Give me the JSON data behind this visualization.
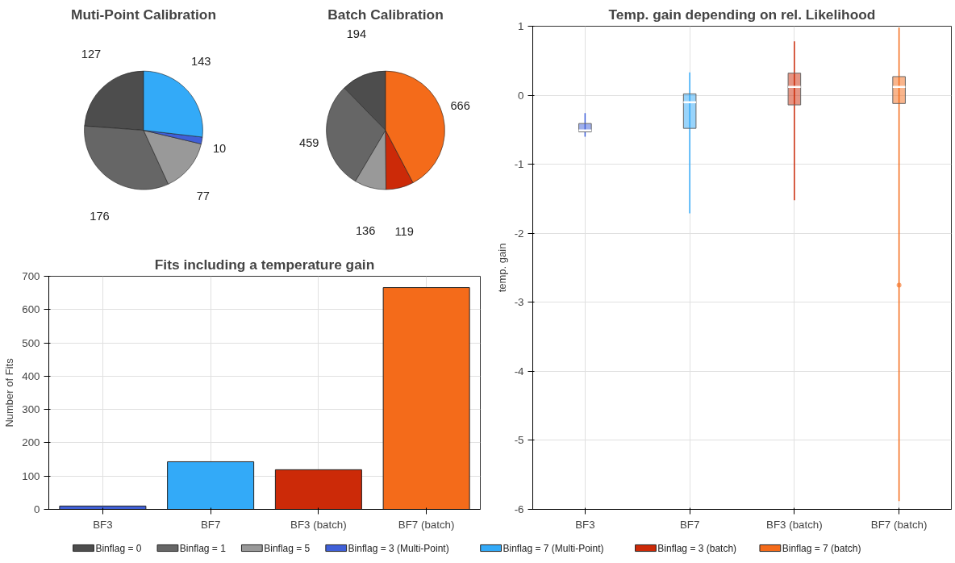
{
  "chart_data": [
    {
      "type": "pie",
      "title": "Muti-Point Calibration",
      "categories": [
        "Binflag = 0",
        "Binflag = 1",
        "Binflag = 5",
        "Binflag = 3 (Multi-Point)",
        "Binflag = 7 (Multi-Point)"
      ],
      "values": [
        127,
        176,
        77,
        10,
        143
      ],
      "colors": [
        "#4d4d4d",
        "#666666",
        "#999999",
        "#4060d8",
        "#33aaf8"
      ],
      "data_labels": true,
      "legend": "bottom"
    },
    {
      "type": "pie",
      "title": "Batch Calibration",
      "categories": [
        null,
        null,
        null,
        "Binflag = 3 (batch)",
        "Binflag = 7 (batch)"
      ],
      "values": [
        194,
        459,
        136,
        119,
        666
      ],
      "colors": [
        "#4d4d4d",
        "#666666",
        "#999999",
        "#cc2a08",
        "#f46b1a"
      ],
      "data_labels": true,
      "legend": "bottom"
    },
    {
      "type": "bar",
      "title": "Fits including a temperature gain",
      "ylabel": "Number of Fits",
      "categories": [
        "BF3",
        "BF7",
        "BF3 (batch)",
        "BF7 (batch)"
      ],
      "values": [
        10,
        143,
        119,
        666
      ],
      "colors": [
        "#4060d8",
        "#33aaf8",
        "#cc2a08",
        "#f46b1a"
      ],
      "ylim": [
        0,
        700
      ],
      "yticks": [
        0,
        100,
        200,
        300,
        400,
        500,
        600,
        700
      ],
      "grid": true
    },
    {
      "type": "box",
      "title": "Temp. gain depending on rel. Likelihood",
      "ylabel": "temp. gain",
      "categories": [
        "BF3",
        "BF7",
        "BF3 (batch)",
        "BF7 (batch)"
      ],
      "colors": [
        "#4060d8",
        "#33aaf8",
        "#cc2a08",
        "#f46b1a"
      ],
      "boxes": [
        {
          "low": -0.6,
          "q1": -0.53,
          "median": -0.51,
          "q3": -0.41,
          "high": -0.26
        },
        {
          "low": -1.71,
          "q1": -0.48,
          "median": -0.1,
          "q3": 0.02,
          "high": 0.33
        },
        {
          "low": -1.52,
          "q1": -0.14,
          "median": 0.12,
          "q3": 0.32,
          "high": 0.78
        },
        {
          "low": -5.88,
          "q1": -0.12,
          "median": 0.12,
          "q3": 0.27,
          "high": 0.98,
          "outliers": [
            -2.75
          ]
        }
      ],
      "ylim": [
        -6,
        1
      ],
      "yticks": [
        -6,
        -5,
        -4,
        -3,
        -2,
        -1,
        0,
        1
      ],
      "grid": true
    }
  ]
}
